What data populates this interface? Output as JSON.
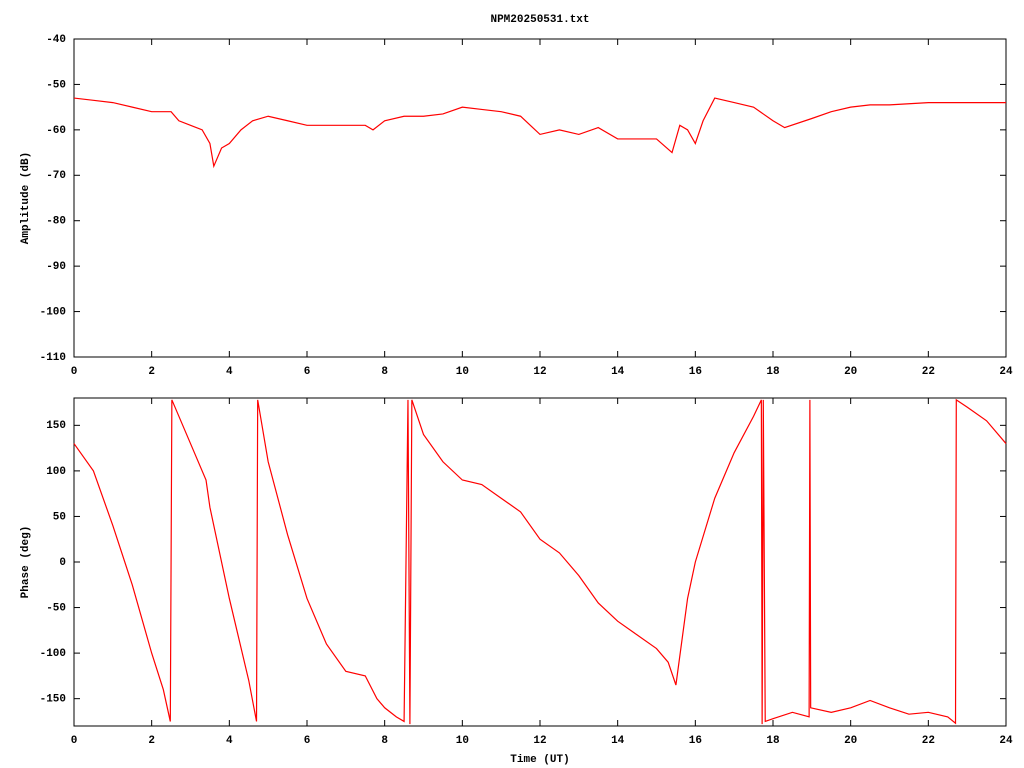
{
  "chart_data": [
    {
      "type": "line",
      "title": "NPM20250531.txt",
      "y_label": "Amplitude (dB)",
      "x": [
        0,
        0.5,
        1,
        1.5,
        2,
        2.5,
        2.7,
        3,
        3.3,
        3.5,
        3.6,
        3.8,
        4,
        4.3,
        4.6,
        5,
        5.5,
        6,
        6.5,
        7,
        7.5,
        7.7,
        8,
        8.5,
        9,
        9.5,
        10,
        10.5,
        11,
        11.5,
        12,
        12.5,
        13,
        13.5,
        14,
        14.5,
        15,
        15.4,
        15.6,
        15.8,
        16,
        16.2,
        16.5,
        17,
        17.5,
        18,
        18.3,
        19,
        19.5,
        20,
        20.5,
        21,
        22,
        23,
        24
      ],
      "values": [
        -53,
        -53.5,
        -54,
        -55,
        -56,
        -56,
        -58,
        -59,
        -60,
        -63,
        -68,
        -64,
        -63,
        -60,
        -58,
        -57,
        -58,
        -59,
        -59,
        -59,
        -59,
        -60,
        -58,
        -57,
        -57,
        -56.5,
        -55,
        -55.5,
        -56,
        -57,
        -61,
        -60,
        -61,
        -59.5,
        -62,
        -62,
        -62,
        -65,
        -59,
        -60,
        -63,
        -58,
        -53,
        -54,
        -55,
        -58,
        -59.5,
        -57.5,
        -56,
        -55,
        -54.5,
        -54.5,
        -54,
        -54,
        -54
      ],
      "color": "#ff0000",
      "xlim": [
        0,
        24
      ],
      "xticks": [
        0,
        2,
        4,
        6,
        8,
        10,
        12,
        14,
        16,
        18,
        20,
        22,
        24
      ],
      "ylim": [
        -110,
        -40
      ],
      "yticks": [
        -110,
        -100,
        -90,
        -80,
        -70,
        -60,
        -50,
        -40
      ]
    },
    {
      "type": "line",
      "x_label": "Time (UT)",
      "y_label": "Phase (deg)",
      "x": [
        0,
        0.5,
        1,
        1.5,
        2,
        2.3,
        2.48,
        2.52,
        3,
        3.4,
        3.5,
        4,
        4.5,
        4.7,
        4.73,
        5,
        5.5,
        6,
        6.5,
        7,
        7.5,
        7.8,
        8,
        8.3,
        8.5,
        8.6,
        8.65,
        8.7,
        9,
        9.5,
        10,
        10.5,
        11,
        11.5,
        12,
        12.5,
        13,
        13.5,
        14,
        14.5,
        15,
        15.3,
        15.5,
        15.8,
        16,
        16.5,
        17,
        17.5,
        17.7,
        17.72,
        17.75,
        17.8,
        18,
        18.5,
        18.93,
        18.95,
        18.97,
        19.5,
        20,
        20.5,
        21,
        21.5,
        22,
        22.5,
        22.7,
        22.72,
        23,
        23.5,
        24
      ],
      "values": [
        130,
        100,
        40,
        -25,
        -100,
        -140,
        -175,
        178,
        130,
        90,
        60,
        -40,
        -130,
        -175,
        178,
        110,
        30,
        -40,
        -90,
        -120,
        -125,
        -150,
        -160,
        -170,
        -175,
        178,
        -178,
        178,
        140,
        110,
        90,
        85,
        70,
        55,
        25,
        10,
        -15,
        -45,
        -65,
        -80,
        -95,
        -110,
        -135,
        -40,
        0,
        70,
        120,
        160,
        178,
        -178,
        178,
        -175,
        -172,
        -165,
        -170,
        178,
        -160,
        -165,
        -160,
        -152,
        -160,
        -167,
        -165,
        -170,
        -177,
        178,
        170,
        155,
        130
      ],
      "color": "#ff0000",
      "xlim": [
        0,
        24
      ],
      "xticks": [
        0,
        2,
        4,
        6,
        8,
        10,
        12,
        14,
        16,
        18,
        20,
        22,
        24
      ],
      "ylim": [
        -180,
        180
      ],
      "yticks": [
        -150,
        -100,
        -50,
        0,
        50,
        100,
        150
      ]
    }
  ]
}
